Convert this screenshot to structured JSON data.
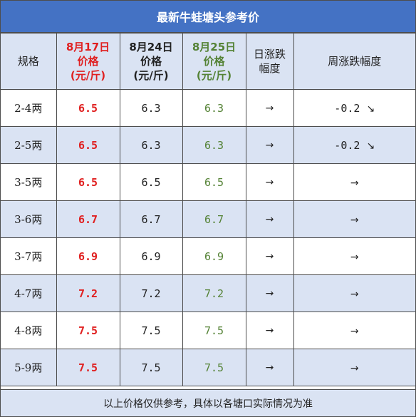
{
  "title": "最新牛蛙塘头参考价",
  "headers": {
    "spec": "规格",
    "col_aug17": [
      "8月17日",
      "价格",
      "(元/斤)"
    ],
    "col_aug24": [
      "8月24日",
      "价格",
      "(元/斤)"
    ],
    "col_aug25": [
      "8月25日",
      "价格",
      "(元/斤)"
    ],
    "daily": [
      "日涨跌",
      "幅度"
    ],
    "weekly": "周涨跌幅度"
  },
  "rows": [
    {
      "spec": "2-4两",
      "aug17": "6.5",
      "aug24": "6.3",
      "aug25": "6.3",
      "daily": "→",
      "weekly_value": "-0.2",
      "weekly_arrow": "↘"
    },
    {
      "spec": "2-5两",
      "aug17": "6.5",
      "aug24": "6.3",
      "aug25": "6.3",
      "daily": "→",
      "weekly_value": "-0.2",
      "weekly_arrow": "↘"
    },
    {
      "spec": "3-5两",
      "aug17": "6.5",
      "aug24": "6.5",
      "aug25": "6.5",
      "daily": "→",
      "weekly_value": "",
      "weekly_arrow": "→"
    },
    {
      "spec": "3-6两",
      "aug17": "6.7",
      "aug24": "6.7",
      "aug25": "6.7",
      "daily": "→",
      "weekly_value": "",
      "weekly_arrow": "→"
    },
    {
      "spec": "3-7两",
      "aug17": "6.9",
      "aug24": "6.9",
      "aug25": "6.9",
      "daily": "→",
      "weekly_value": "",
      "weekly_arrow": "→"
    },
    {
      "spec": "4-7两",
      "aug17": "7.2",
      "aug24": "7.2",
      "aug25": "7.2",
      "daily": "→",
      "weekly_value": "",
      "weekly_arrow": "→"
    },
    {
      "spec": "4-8两",
      "aug17": "7.5",
      "aug24": "7.5",
      "aug25": "7.5",
      "daily": "→",
      "weekly_value": "",
      "weekly_arrow": "→"
    },
    {
      "spec": "5-9两",
      "aug17": "7.5",
      "aug24": "7.5",
      "aug25": "7.5",
      "daily": "→",
      "weekly_value": "",
      "weekly_arrow": "→"
    }
  ],
  "footer": "以上价格仅供参考，具体以各塘口实际情况为准",
  "colors": {
    "header_bg": "#4472c4",
    "band_bg": "#dae3f3",
    "red": "#e02020",
    "green": "#548235"
  }
}
